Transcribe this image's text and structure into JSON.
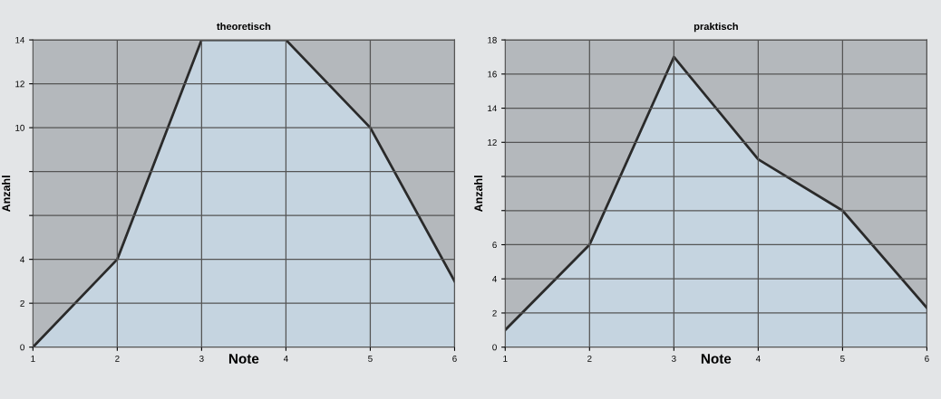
{
  "chart_data": [
    {
      "type": "area",
      "title": "theoretisch",
      "xlabel": "Note",
      "ylabel": "Anzahl",
      "x": [
        1,
        2,
        3,
        4,
        5,
        6
      ],
      "series": [
        {
          "color": "#c5d4e0",
          "values": [
            0,
            4,
            14,
            14,
            10,
            3
          ]
        }
      ],
      "xlim": [
        1,
        6
      ],
      "xticks": [
        1,
        2,
        3,
        4,
        5,
        6
      ],
      "ylim": [
        0,
        14
      ],
      "yticks": [
        0,
        2,
        4,
        {
          "value": 6,
          "label": null
        },
        {
          "value": 8,
          "label": null
        },
        10,
        12,
        14
      ],
      "grid": true
    },
    {
      "type": "area",
      "title": "praktisch",
      "xlabel": "Note",
      "ylabel": "Anzahl",
      "x": [
        1,
        2,
        3,
        4,
        5,
        6
      ],
      "series": [
        {
          "color": "#c5d4e0",
          "values": [
            1,
            6,
            17,
            11,
            8,
            2.3
          ]
        }
      ],
      "xlim": [
        1,
        6
      ],
      "xticks": [
        1,
        2,
        3,
        4,
        5,
        6
      ],
      "ylim": [
        0,
        18
      ],
      "yticks": [
        0,
        2,
        4,
        6,
        {
          "value": 8,
          "label": null
        },
        {
          "value": 10,
          "label": null
        },
        12,
        14,
        16,
        18
      ],
      "grid": true
    }
  ]
}
